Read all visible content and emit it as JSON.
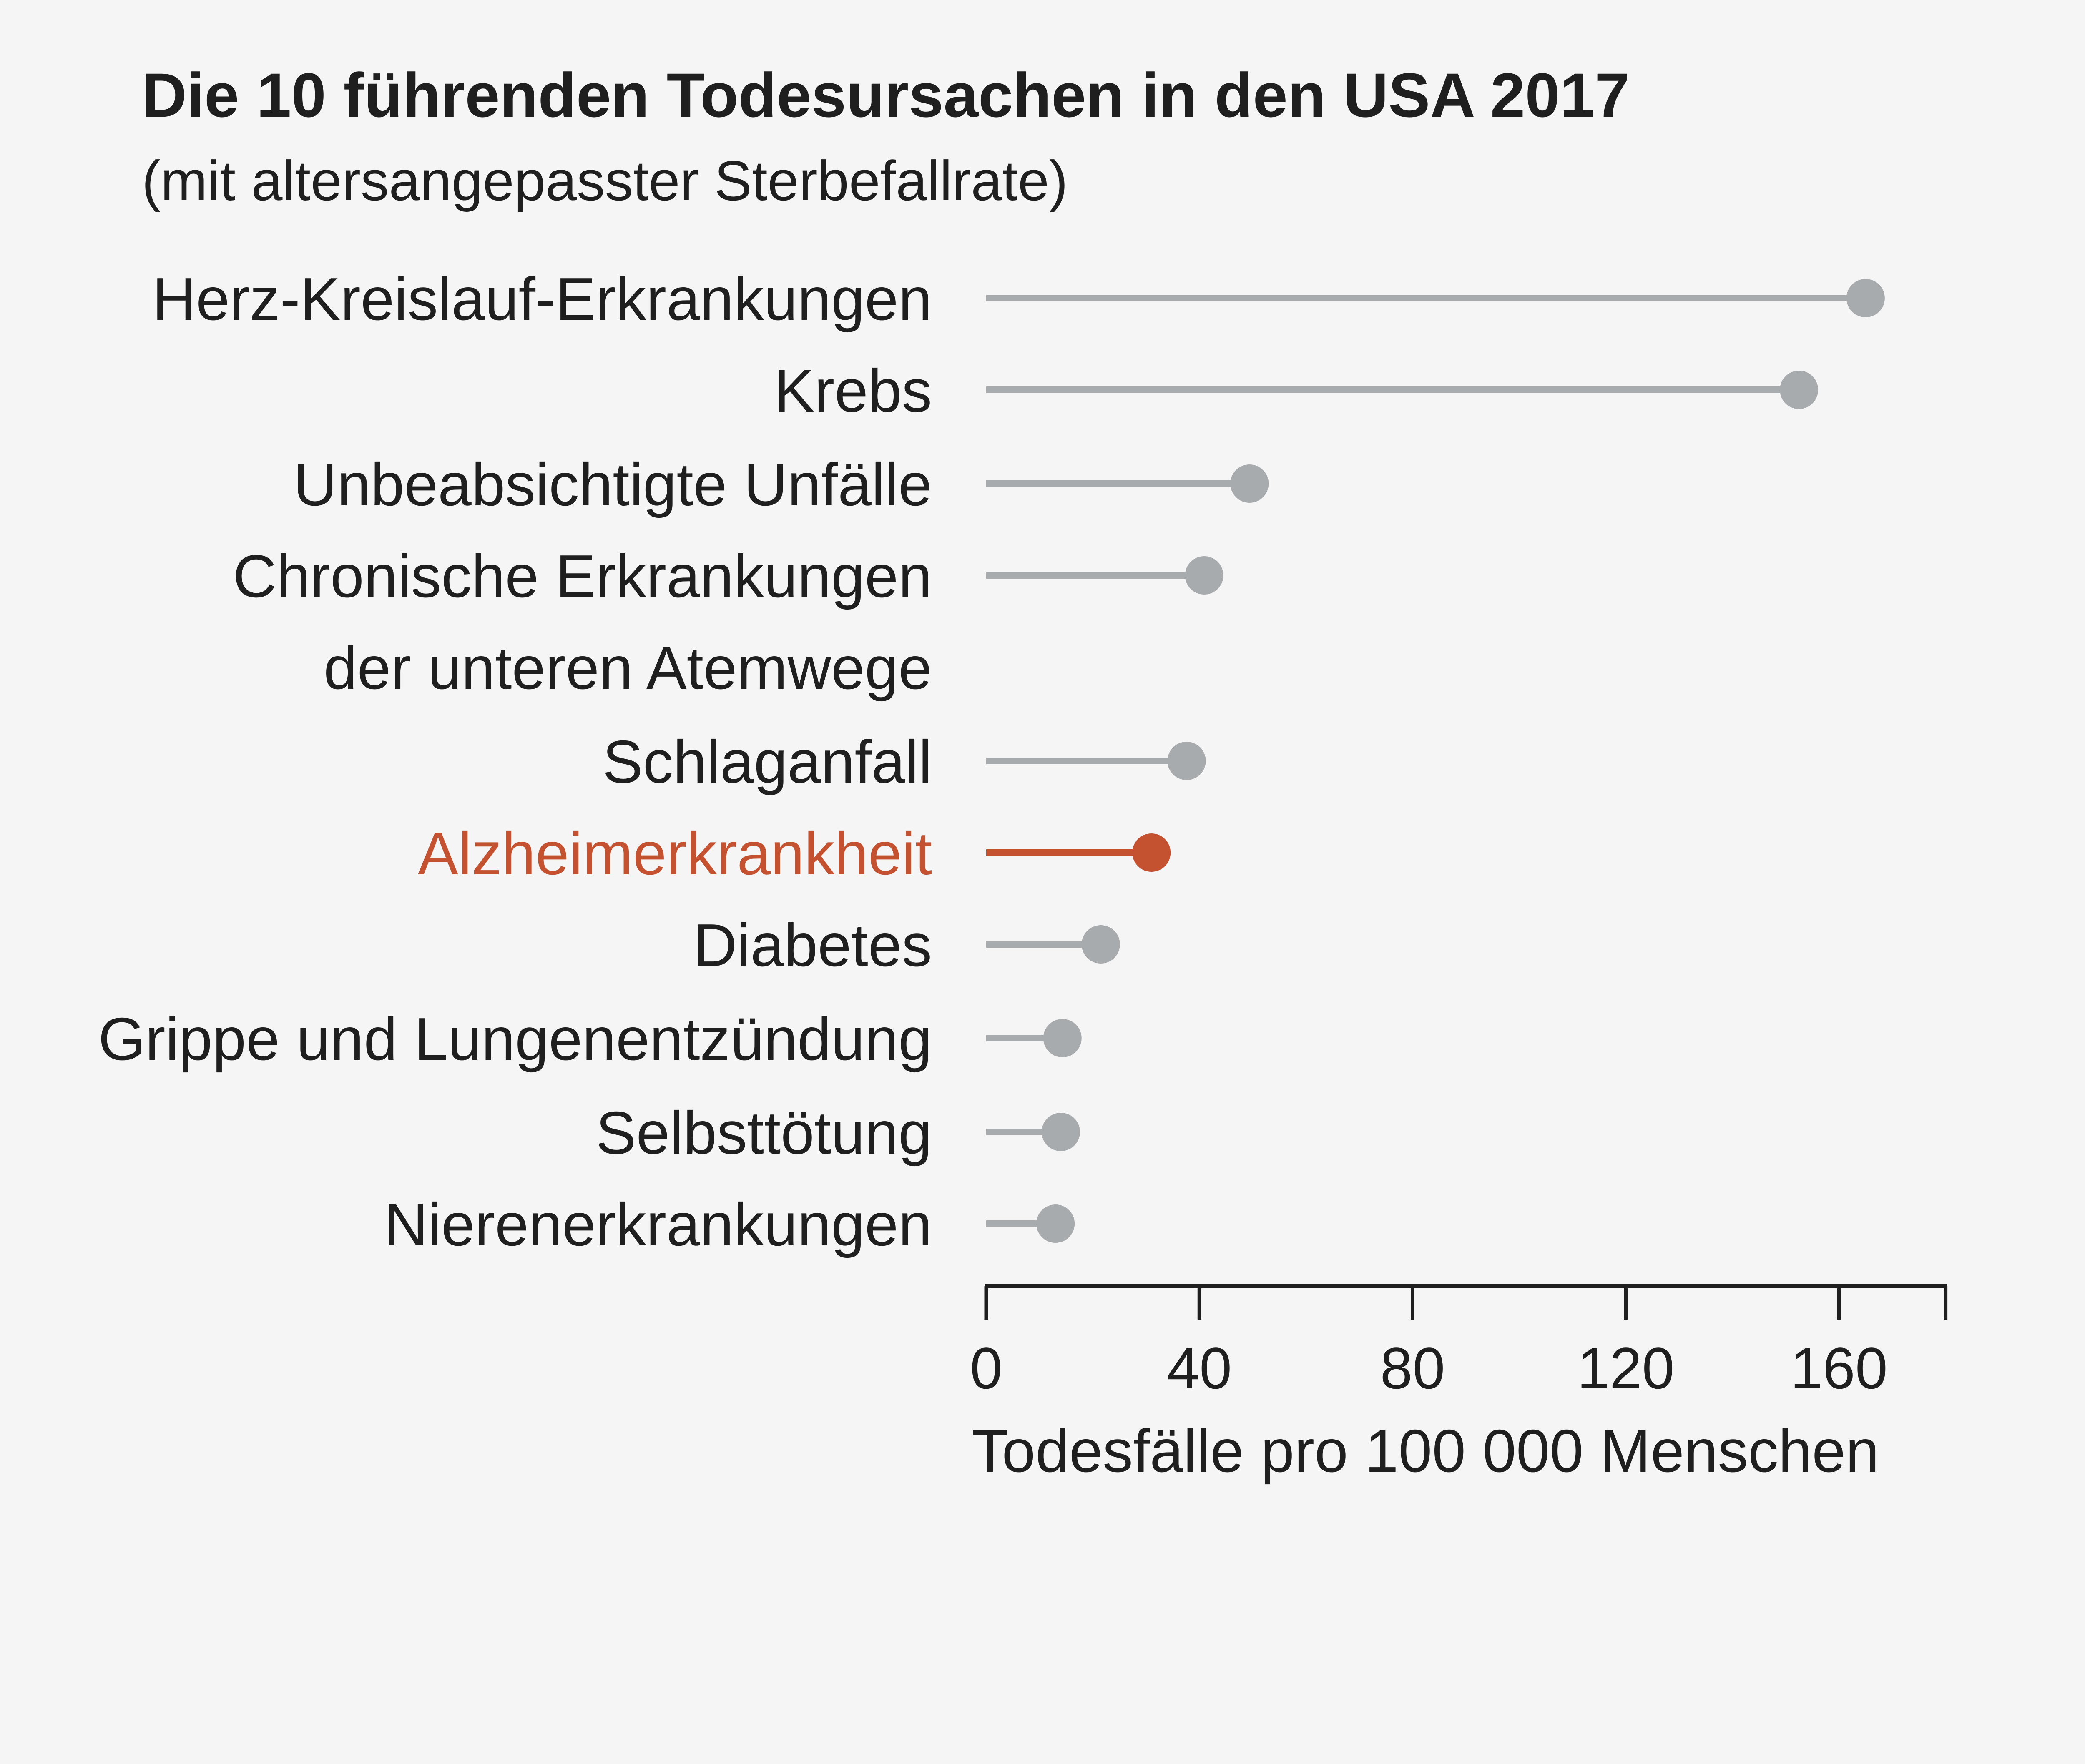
{
  "colors": {
    "background": "#f5f5f5",
    "text": "#1f1f1f",
    "stem": "#a8abae",
    "highlight": "#c4512f",
    "axis": "#1f1f1f"
  },
  "chart_data": {
    "type": "lollipop",
    "title": "Die 10 führenden Todesursachen in den USA 2017",
    "subtitle": "(mit altersangepasster Sterbefallrate)",
    "xlabel": "Todesfälle pro 100 000 Menschen",
    "xlim": [
      0,
      180
    ],
    "xticks": [
      0,
      40,
      80,
      120,
      160
    ],
    "categories": [
      [
        "Herz-Kreislauf-Erkrankungen"
      ],
      [
        "Krebs"
      ],
      [
        "Unbeabsichtigte Unfälle"
      ],
      [
        "Chronische Erkrankungen",
        "der unteren Atemwege"
      ],
      [
        "Schlaganfall"
      ],
      [
        "Alzheimerkrankheit"
      ],
      [
        "Diabetes"
      ],
      [
        "Grippe und Lungenentzündung"
      ],
      [
        "Selbsttötung"
      ],
      [
        "Nierenerkrankungen"
      ]
    ],
    "values": [
      165.0,
      152.5,
      49.4,
      40.9,
      37.6,
      31.0,
      21.5,
      14.3,
      14.0,
      13.0
    ],
    "highlight_index": 5
  }
}
